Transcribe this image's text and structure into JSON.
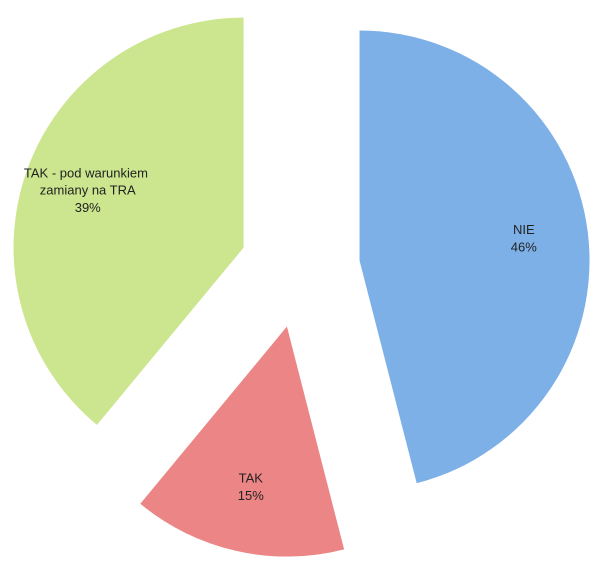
{
  "chart_data": {
    "type": "pie",
    "categories": [
      "NIE",
      "TAK",
      "TAK - pod warunkiem zamiany na TRA"
    ],
    "values": [
      46,
      15,
      39
    ],
    "value_labels": [
      "46%",
      "15%",
      "39%"
    ],
    "colors": [
      "#7eb0e8",
      "#ec8585",
      "#cbe68f"
    ]
  }
}
